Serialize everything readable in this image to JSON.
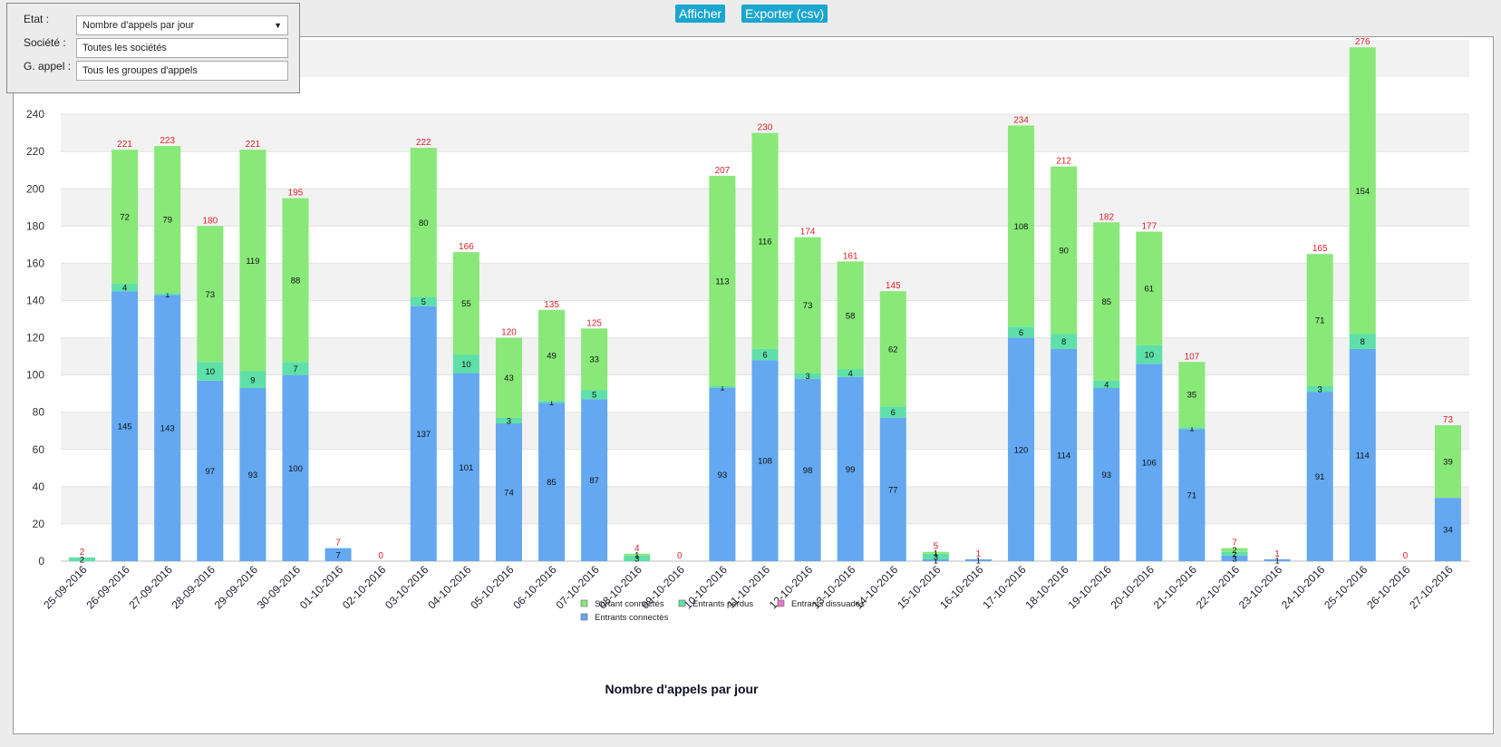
{
  "toolbar": {
    "display_label": "Afficher",
    "export_label": "Exporter (csv)"
  },
  "filters": {
    "etat_label": "Etat :",
    "etat_value": "Nombre d'appels par jour",
    "societe_label": "Société :",
    "societe_value": "Toutes les sociétés",
    "groupe_label": "G. appel :",
    "groupe_value": "Tous les groupes d'appels"
  },
  "chart_data": {
    "type": "bar",
    "stacked": true,
    "title": "Nombre d'appels par jour",
    "ylim": [
      0,
      280
    ],
    "yticks": [
      0,
      20,
      40,
      60,
      80,
      100,
      120,
      140,
      160,
      180,
      200,
      220,
      240
    ],
    "grid": true,
    "legend_position": "bottom",
    "categories": [
      "25-09-2016",
      "26-09-2016",
      "27-09-2016",
      "28-09-2016",
      "29-09-2016",
      "30-09-2016",
      "01-10-2016",
      "02-10-2016",
      "03-10-2016",
      "04-10-2016",
      "05-10-2016",
      "06-10-2016",
      "07-10-2016",
      "08-10-2016",
      "09-10-2016",
      "10-10-2016",
      "11-10-2016",
      "12-10-2016",
      "13-10-2016",
      "14-10-2016",
      "15-10-2016",
      "16-10-2016",
      "17-10-2016",
      "18-10-2016",
      "19-10-2016",
      "20-10-2016",
      "21-10-2016",
      "22-10-2016",
      "23-10-2016",
      "24-10-2016",
      "25-10-2016",
      "26-10-2016",
      "27-10-2016"
    ],
    "series": [
      {
        "name": "Entrants connectés",
        "color": "#63a8f0",
        "values": [
          0,
          145,
          143,
          97,
          93,
          100,
          7,
          0,
          137,
          101,
          74,
          85,
          87,
          0,
          0,
          93,
          108,
          98,
          99,
          77,
          1,
          1,
          120,
          114,
          93,
          106,
          71,
          3,
          1,
          91,
          114,
          0,
          34
        ]
      },
      {
        "name": "Entrants perdus",
        "color": "#5ee0a8",
        "values": [
          2,
          4,
          1,
          10,
          9,
          7,
          0,
          0,
          5,
          10,
          3,
          1,
          5,
          3,
          0,
          1,
          6,
          3,
          4,
          6,
          3,
          0,
          6,
          8,
          4,
          10,
          1,
          2,
          0,
          3,
          8,
          0,
          0
        ]
      },
      {
        "name": "Sortant connectés",
        "color": "#88e878",
        "values": [
          0,
          72,
          79,
          73,
          119,
          88,
          0,
          0,
          80,
          55,
          43,
          49,
          33,
          1,
          0,
          113,
          116,
          73,
          58,
          62,
          1,
          0,
          108,
          90,
          85,
          61,
          35,
          2,
          0,
          71,
          154,
          0,
          39
        ]
      },
      {
        "name": "Entrants dissuadés",
        "color": "#e878c8",
        "values": [
          0,
          0,
          0,
          0,
          0,
          0,
          0,
          0,
          0,
          0,
          0,
          0,
          0,
          0,
          0,
          0,
          0,
          0,
          0,
          0,
          0,
          0,
          0,
          0,
          0,
          0,
          0,
          0,
          0,
          0,
          0,
          0,
          0
        ]
      }
    ],
    "totals": [
      2,
      221,
      223,
      180,
      221,
      195,
      7,
      0,
      222,
      166,
      120,
      135,
      125,
      4,
      0,
      207,
      230,
      174,
      161,
      145,
      5,
      1,
      234,
      212,
      182,
      177,
      107,
      7,
      1,
      165,
      276,
      0,
      73
    ]
  }
}
